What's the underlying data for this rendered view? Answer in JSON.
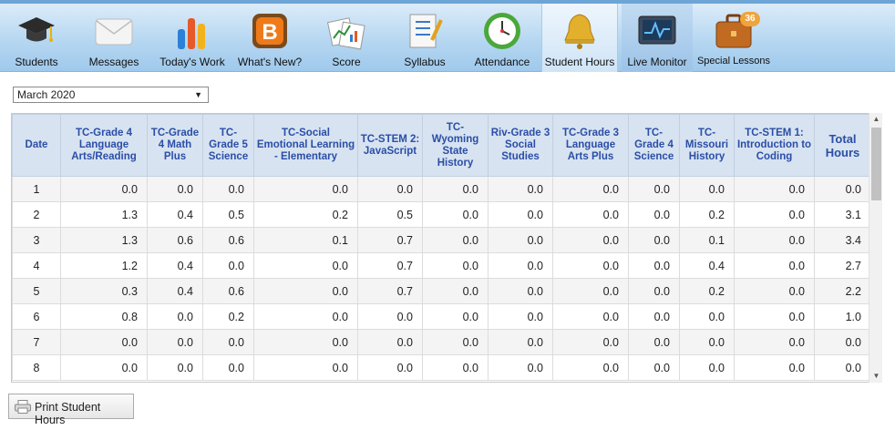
{
  "nav": {
    "items": [
      {
        "label": "Students",
        "icon": "graduation-cap-icon"
      },
      {
        "label": "Messages",
        "icon": "envelope-icon"
      },
      {
        "label": "Today's Work",
        "icon": "bar-chart-icon"
      },
      {
        "label": "What's New?",
        "icon": "blogger-icon"
      },
      {
        "label": "Score",
        "icon": "score-chart-icon"
      },
      {
        "label": "Syllabus",
        "icon": "checklist-icon"
      },
      {
        "label": "Attendance",
        "icon": "clock-icon"
      },
      {
        "label": "Student Hours",
        "icon": "bell-icon"
      },
      {
        "label": "Live Monitor",
        "icon": "monitor-icon"
      },
      {
        "label": "Special Lessons",
        "icon": "briefcase-icon",
        "badge": "36"
      }
    ],
    "active": "Student Hours"
  },
  "month_select": {
    "value": "March 2020"
  },
  "table": {
    "headers": [
      "Date",
      "TC-Grade 4 Language Arts/Reading",
      "TC-Grade 4 Math Plus",
      "TC-Grade 5 Science",
      "TC-Social Emotional Learning - Elementary",
      "TC-STEM 2: JavaScript",
      "TC-Wyoming State History",
      "Riv-Grade 3 Social Studies",
      "TC-Grade 3 Language Arts Plus",
      "TC-Grade 4 Science",
      "TC-Missouri History",
      "TC-STEM 1: Introduction to Coding",
      "Total Hours"
    ],
    "rows": [
      [
        "1",
        "0.0",
        "0.0",
        "0.0",
        "0.0",
        "0.0",
        "0.0",
        "0.0",
        "0.0",
        "0.0",
        "0.0",
        "0.0",
        "0.0"
      ],
      [
        "2",
        "1.3",
        "0.4",
        "0.5",
        "0.2",
        "0.5",
        "0.0",
        "0.0",
        "0.0",
        "0.0",
        "0.2",
        "0.0",
        "3.1"
      ],
      [
        "3",
        "1.3",
        "0.6",
        "0.6",
        "0.1",
        "0.7",
        "0.0",
        "0.0",
        "0.0",
        "0.0",
        "0.1",
        "0.0",
        "3.4"
      ],
      [
        "4",
        "1.2",
        "0.4",
        "0.0",
        "0.0",
        "0.7",
        "0.0",
        "0.0",
        "0.0",
        "0.0",
        "0.4",
        "0.0",
        "2.7"
      ],
      [
        "5",
        "0.3",
        "0.4",
        "0.6",
        "0.0",
        "0.7",
        "0.0",
        "0.0",
        "0.0",
        "0.0",
        "0.2",
        "0.0",
        "2.2"
      ],
      [
        "6",
        "0.8",
        "0.0",
        "0.2",
        "0.0",
        "0.0",
        "0.0",
        "0.0",
        "0.0",
        "0.0",
        "0.0",
        "0.0",
        "1.0"
      ],
      [
        "7",
        "0.0",
        "0.0",
        "0.0",
        "0.0",
        "0.0",
        "0.0",
        "0.0",
        "0.0",
        "0.0",
        "0.0",
        "0.0",
        "0.0"
      ],
      [
        "8",
        "0.0",
        "0.0",
        "0.0",
        "0.0",
        "0.0",
        "0.0",
        "0.0",
        "0.0",
        "0.0",
        "0.0",
        "0.0",
        "0.0"
      ]
    ]
  },
  "print_button": {
    "label": "Print Student Hours",
    "icon": "printer-icon"
  }
}
